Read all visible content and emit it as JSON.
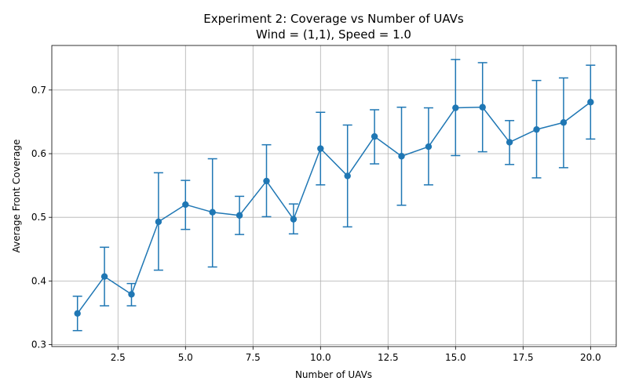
{
  "chart_data": {
    "type": "line",
    "title": "Experiment 2: Coverage vs Number of UAVs",
    "subtitle": "Wind = (1,1), Speed = 1.0",
    "xlabel": "Number of UAVs",
    "ylabel": "Average Front Coverage",
    "xlim": [
      0.05,
      20.95
    ],
    "ylim": [
      0.297,
      0.77
    ],
    "xticks": [
      2.5,
      5.0,
      7.5,
      10.0,
      12.5,
      15.0,
      17.5,
      20.0
    ],
    "xtick_labels": [
      "2.5",
      "5.0",
      "7.5",
      "10.0",
      "12.5",
      "15.0",
      "17.5",
      "20.0"
    ],
    "yticks": [
      0.3,
      0.4,
      0.5,
      0.6,
      0.7
    ],
    "ytick_labels": [
      "0.3",
      "0.4",
      "0.5",
      "0.6",
      "0.7"
    ],
    "grid": true,
    "series": [
      {
        "color": "#1f77b4",
        "x": [
          1,
          2,
          3,
          4,
          5,
          6,
          7,
          8,
          9,
          10,
          11,
          12,
          13,
          14,
          15,
          16,
          17,
          18,
          19,
          20
        ],
        "y": [
          0.349,
          0.407,
          0.379,
          0.493,
          0.52,
          0.508,
          0.503,
          0.557,
          0.497,
          0.608,
          0.565,
          0.627,
          0.596,
          0.611,
          0.672,
          0.673,
          0.618,
          0.638,
          0.649,
          0.681
        ],
        "y_lower": [
          0.322,
          0.361,
          0.361,
          0.417,
          0.481,
          0.422,
          0.473,
          0.501,
          0.474,
          0.551,
          0.485,
          0.584,
          0.519,
          0.551,
          0.597,
          0.603,
          0.583,
          0.562,
          0.578,
          0.623
        ],
        "y_upper": [
          0.376,
          0.453,
          0.396,
          0.57,
          0.558,
          0.592,
          0.533,
          0.614,
          0.521,
          0.665,
          0.645,
          0.669,
          0.673,
          0.672,
          0.748,
          0.743,
          0.652,
          0.715,
          0.719,
          0.739
        ]
      }
    ]
  }
}
